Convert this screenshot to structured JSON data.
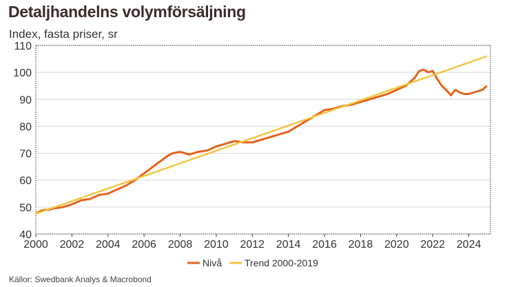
{
  "title": "Detaljhandelns volymförsäljning",
  "subtitle": "Index, fasta priser, sr",
  "source": "Källor: Swedbank Analys & Macrobond",
  "colors": {
    "level": "#e4621a",
    "trend": "#f5c542",
    "grid": "#d6d6d6",
    "frame": "#333333"
  },
  "chart_data": {
    "type": "line",
    "ylim": [
      40,
      110
    ],
    "yticks": [
      "40",
      "50",
      "60",
      "70",
      "80",
      "90",
      "100",
      "110"
    ],
    "xlim": [
      2000,
      2025.2
    ],
    "xticks": [
      "2000",
      "2002",
      "2004",
      "2006",
      "2008",
      "2010",
      "2012",
      "2014",
      "2016",
      "2018",
      "2020",
      "2022",
      "2024"
    ],
    "legend_position": "bottom-center",
    "grid": true,
    "series": [
      {
        "name": "Nivå",
        "color": "#e4621a",
        "x": [
          2000.0,
          2000.25,
          2000.5,
          2000.75,
          2001.0,
          2001.5,
          2002.0,
          2002.5,
          2003.0,
          2003.5,
          2004.0,
          2004.5,
          2005.0,
          2005.5,
          2006.0,
          2006.5,
          2007.0,
          2007.3,
          2007.6,
          2008.0,
          2008.5,
          2009.0,
          2009.5,
          2010.0,
          2010.5,
          2011.0,
          2011.5,
          2012.0,
          2012.5,
          2013.0,
          2013.5,
          2014.0,
          2014.5,
          2015.0,
          2015.5,
          2016.0,
          2016.5,
          2017.0,
          2017.5,
          2018.0,
          2018.5,
          2019.0,
          2019.5,
          2020.0,
          2020.5,
          2021.0,
          2021.25,
          2021.5,
          2021.75,
          2022.0,
          2022.25,
          2022.5,
          2022.75,
          2023.0,
          2023.25,
          2023.5,
          2023.75,
          2024.0,
          2024.25,
          2024.5,
          2024.75,
          2025.0
        ],
        "y": [
          47.5,
          48.5,
          49.0,
          49.0,
          49.5,
          50.0,
          51.0,
          52.5,
          53.0,
          54.5,
          55.0,
          56.5,
          58.0,
          60.0,
          62.5,
          65.0,
          67.5,
          69.0,
          70.0,
          70.5,
          69.5,
          70.5,
          71.0,
          72.5,
          73.5,
          74.5,
          74.0,
          74.0,
          75.0,
          76.0,
          77.0,
          78.0,
          80.0,
          82.0,
          84.0,
          86.0,
          86.5,
          87.5,
          88.0,
          89.0,
          90.0,
          91.0,
          92.0,
          93.5,
          95.0,
          98.0,
          100.5,
          101.0,
          100.0,
          100.5,
          97.5,
          95.0,
          93.5,
          91.5,
          93.5,
          92.5,
          92.0,
          92.0,
          92.5,
          93.0,
          93.5,
          95.0
        ]
      },
      {
        "name": "Trend 2000-2019",
        "color": "#f5c542",
        "x": [
          2000.0,
          2025.0
        ],
        "y": [
          47.5,
          106.0
        ]
      }
    ]
  }
}
